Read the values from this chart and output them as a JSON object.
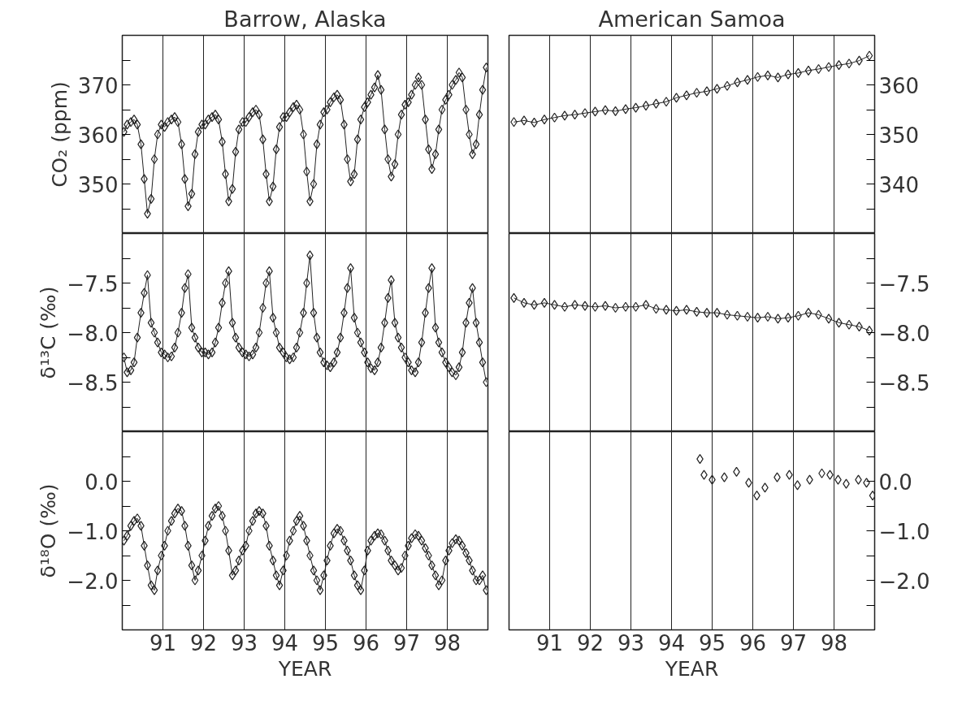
{
  "chart_data": [
    {
      "type": "line",
      "title": "Barrow, Alaska",
      "ylabel": "CO₂ (ppm)",
      "marker": "diamond",
      "grid": "x",
      "tick_labels": "y",
      "xlim": [
        90,
        99
      ],
      "xticks": [
        91,
        92,
        93,
        94,
        95,
        96,
        97,
        98
      ],
      "ylim": [
        340,
        380
      ],
      "yticks": [
        {
          "value": 345,
          "label": null
        },
        350,
        {
          "value": 355,
          "label": null
        },
        360,
        {
          "value": 365,
          "label": null
        },
        370,
        {
          "value": 375,
          "label": null
        }
      ],
      "x": [
        90.04,
        90.12,
        90.21,
        90.29,
        90.37,
        90.46,
        90.54,
        90.62,
        90.71,
        90.79,
        90.87,
        90.96,
        91.04,
        91.12,
        91.21,
        91.29,
        91.37,
        91.46,
        91.54,
        91.62,
        91.71,
        91.79,
        91.87,
        91.96,
        92.04,
        92.12,
        92.21,
        92.29,
        92.37,
        92.46,
        92.54,
        92.62,
        92.71,
        92.79,
        92.87,
        92.96,
        93.04,
        93.12,
        93.21,
        93.29,
        93.37,
        93.46,
        93.54,
        93.62,
        93.71,
        93.79,
        93.87,
        93.96,
        94.04,
        94.12,
        94.21,
        94.29,
        94.37,
        94.46,
        94.54,
        94.62,
        94.71,
        94.79,
        94.87,
        94.96,
        95.04,
        95.12,
        95.21,
        95.29,
        95.37,
        95.46,
        95.54,
        95.62,
        95.71,
        95.79,
        95.87,
        95.96,
        96.04,
        96.12,
        96.21,
        96.29,
        96.37,
        96.46,
        96.54,
        96.62,
        96.71,
        96.79,
        96.87,
        96.96,
        97.04,
        97.12,
        97.21,
        97.29,
        97.37,
        97.46,
        97.54,
        97.62,
        97.71,
        97.79,
        97.87,
        97.96,
        98.04,
        98.12,
        98.21,
        98.29,
        98.37,
        98.46,
        98.54,
        98.62,
        98.71,
        98.79,
        98.87,
        98.96
      ],
      "series": [
        {
          "color": "#222222",
          "values": [
            360.5,
            362,
            362.5,
            363,
            362,
            358,
            351,
            344,
            347,
            355,
            360,
            362,
            361.5,
            362.5,
            363,
            363.5,
            362.5,
            358,
            351,
            345.5,
            348,
            356,
            360.5,
            362,
            362,
            363,
            363.5,
            364,
            363,
            358.5,
            352,
            346.5,
            349,
            356.5,
            361,
            362.5,
            362.5,
            363.5,
            364.5,
            365,
            364,
            359,
            352,
            346.5,
            349.5,
            357,
            361.5,
            363.5,
            363.5,
            364.5,
            365.5,
            366,
            365,
            360,
            352.5,
            346.5,
            350,
            358,
            362,
            364.5,
            365,
            366.5,
            367.5,
            368,
            367,
            362,
            355,
            350.5,
            352,
            359,
            363,
            365.5,
            366.5,
            368,
            369.5,
            372,
            369,
            361,
            355,
            351.5,
            354,
            360,
            364,
            366,
            366.5,
            368,
            370,
            371.5,
            370,
            363,
            357,
            353,
            356,
            361,
            365,
            367,
            368,
            370,
            371,
            372.5,
            371.5,
            365,
            360,
            356,
            358,
            364,
            369,
            373.5
          ]
        }
      ]
    },
    {
      "type": "line",
      "title": "American Samoa",
      "marker": "diamond",
      "grid": "x",
      "tick_labels": "y",
      "xlim": [
        90,
        99
      ],
      "xticks": [
        91,
        92,
        93,
        94,
        95,
        96,
        97,
        98
      ],
      "ylim": [
        330,
        370
      ],
      "yticks": [
        {
          "value": 335,
          "label": null
        },
        340,
        {
          "value": 345,
          "label": null
        },
        350,
        {
          "value": 355,
          "label": null
        },
        360,
        {
          "value": 365,
          "label": null
        }
      ],
      "x": [
        90.12,
        90.37,
        90.62,
        90.87,
        91.12,
        91.37,
        91.62,
        91.87,
        92.12,
        92.37,
        92.62,
        92.87,
        93.12,
        93.37,
        93.62,
        93.87,
        94.12,
        94.37,
        94.62,
        94.87,
        95.12,
        95.37,
        95.62,
        95.87,
        96.12,
        96.37,
        96.62,
        96.87,
        97.12,
        97.37,
        97.62,
        97.87,
        98.12,
        98.37,
        98.62,
        98.87
      ],
      "series": [
        {
          "color": "#222222",
          "values": [
            352.5,
            352.8,
            352.4,
            353.0,
            353.4,
            353.8,
            354.0,
            354.3,
            354.6,
            354.9,
            354.7,
            355.1,
            355.4,
            355.8,
            356.2,
            356.6,
            357.4,
            357.9,
            358.4,
            358.7,
            359.2,
            359.8,
            360.5,
            361.0,
            361.6,
            361.9,
            361.5,
            362.1,
            362.4,
            362.9,
            363.2,
            363.6,
            364.0,
            364.3,
            364.9,
            365.9
          ]
        }
      ]
    },
    {
      "type": "line",
      "ylabel": "δ¹³C (‰)",
      "marker": "diamond",
      "grid": "x",
      "tick_labels": "y",
      "xlim": [
        90,
        99
      ],
      "xticks": [
        91,
        92,
        93,
        94,
        95,
        96,
        97,
        98
      ],
      "ylim": [
        -9,
        -7
      ],
      "yticks": [
        {
          "value": -7.25,
          "label": null
        },
        {
          "value": -7.5,
          "label": "−7.5"
        },
        {
          "value": -7.75,
          "label": null
        },
        {
          "value": -8.0,
          "label": "−8.0"
        },
        {
          "value": -8.25,
          "label": null
        },
        {
          "value": -8.5,
          "label": "−8.5"
        },
        {
          "value": -8.75,
          "label": null
        }
      ],
      "x": [
        90.04,
        90.12,
        90.21,
        90.29,
        90.37,
        90.46,
        90.54,
        90.62,
        90.71,
        90.79,
        90.87,
        90.96,
        91.04,
        91.12,
        91.21,
        91.29,
        91.37,
        91.46,
        91.54,
        91.62,
        91.71,
        91.79,
        91.87,
        91.96,
        92.04,
        92.12,
        92.21,
        92.29,
        92.37,
        92.46,
        92.54,
        92.62,
        92.71,
        92.79,
        92.87,
        92.96,
        93.04,
        93.12,
        93.21,
        93.29,
        93.37,
        93.46,
        93.54,
        93.62,
        93.71,
        93.79,
        93.87,
        93.96,
        94.04,
        94.12,
        94.21,
        94.29,
        94.37,
        94.46,
        94.54,
        94.62,
        94.71,
        94.79,
        94.87,
        94.96,
        95.04,
        95.12,
        95.21,
        95.29,
        95.37,
        95.46,
        95.54,
        95.62,
        95.71,
        95.79,
        95.87,
        95.96,
        96.04,
        96.12,
        96.21,
        96.29,
        96.37,
        96.46,
        96.54,
        96.62,
        96.71,
        96.79,
        96.87,
        96.96,
        97.04,
        97.12,
        97.21,
        97.29,
        97.37,
        97.46,
        97.54,
        97.62,
        97.71,
        97.79,
        97.87,
        97.96,
        98.04,
        98.12,
        98.21,
        98.29,
        98.37,
        98.46,
        98.54,
        98.62,
        98.71,
        98.79,
        98.87,
        98.96
      ],
      "series": [
        {
          "color": "#222222",
          "values": [
            -8.25,
            -8.4,
            -8.38,
            -8.3,
            -8.05,
            -7.8,
            -7.6,
            -7.42,
            -7.9,
            -8.0,
            -8.1,
            -8.2,
            -8.22,
            -8.25,
            -8.24,
            -8.15,
            -8.0,
            -7.8,
            -7.55,
            -7.41,
            -7.95,
            -8.05,
            -8.15,
            -8.2,
            -8.2,
            -8.22,
            -8.2,
            -8.1,
            -7.95,
            -7.7,
            -7.5,
            -7.38,
            -7.9,
            -8.05,
            -8.15,
            -8.2,
            -8.22,
            -8.24,
            -8.22,
            -8.15,
            -8.0,
            -7.75,
            -7.5,
            -7.38,
            -7.85,
            -8.0,
            -8.15,
            -8.2,
            -8.25,
            -8.27,
            -8.25,
            -8.15,
            -8.0,
            -7.8,
            -7.5,
            -7.22,
            -7.8,
            -8.05,
            -8.2,
            -8.3,
            -8.33,
            -8.35,
            -8.3,
            -8.2,
            -8.05,
            -7.8,
            -7.55,
            -7.35,
            -7.85,
            -8.0,
            -8.1,
            -8.2,
            -8.3,
            -8.36,
            -8.38,
            -8.3,
            -8.15,
            -7.9,
            -7.65,
            -7.47,
            -7.9,
            -8.05,
            -8.15,
            -8.25,
            -8.3,
            -8.38,
            -8.4,
            -8.3,
            -8.1,
            -7.8,
            -7.55,
            -7.35,
            -7.95,
            -8.1,
            -8.2,
            -8.3,
            -8.35,
            -8.4,
            -8.43,
            -8.35,
            -8.2,
            -7.9,
            -7.7,
            -7.55,
            -7.9,
            -8.1,
            -8.3,
            -8.5
          ]
        }
      ]
    },
    {
      "type": "line",
      "marker": "diamond",
      "grid": "x",
      "tick_labels": "y",
      "xlim": [
        90,
        99
      ],
      "xticks": [
        91,
        92,
        93,
        94,
        95,
        96,
        97,
        98
      ],
      "ylim": [
        -9,
        -7
      ],
      "yticks": [
        {
          "value": -7.25,
          "label": null
        },
        {
          "value": -7.5,
          "label": "−7.5"
        },
        {
          "value": -7.75,
          "label": null
        },
        {
          "value": -8.0,
          "label": "−8.0"
        },
        {
          "value": -8.25,
          "label": null
        },
        {
          "value": -8.5,
          "label": "−8.5"
        },
        {
          "value": -8.75,
          "label": null
        }
      ],
      "x": [
        90.12,
        90.37,
        90.62,
        90.87,
        91.12,
        91.37,
        91.62,
        91.87,
        92.12,
        92.37,
        92.62,
        92.87,
        93.12,
        93.37,
        93.62,
        93.87,
        94.12,
        94.37,
        94.62,
        94.87,
        95.12,
        95.37,
        95.62,
        95.87,
        96.12,
        96.37,
        96.62,
        96.87,
        97.12,
        97.37,
        97.62,
        97.87,
        98.12,
        98.37,
        98.62,
        98.87
      ],
      "series": [
        {
          "color": "#222222",
          "values": [
            -7.65,
            -7.7,
            -7.72,
            -7.7,
            -7.72,
            -7.74,
            -7.72,
            -7.73,
            -7.74,
            -7.73,
            -7.75,
            -7.74,
            -7.74,
            -7.72,
            -7.76,
            -7.77,
            -7.78,
            -7.77,
            -7.79,
            -7.8,
            -7.8,
            -7.82,
            -7.83,
            -7.84,
            -7.85,
            -7.84,
            -7.86,
            -7.85,
            -7.83,
            -7.8,
            -7.82,
            -7.86,
            -7.9,
            -7.92,
            -7.94,
            -7.98
          ]
        }
      ]
    },
    {
      "type": "line",
      "ylabel": "δ¹⁸O (‰)",
      "xlabel": "YEAR",
      "marker": "diamond",
      "grid": "x",
      "xlim": [
        90,
        99
      ],
      "xticks": [
        91,
        92,
        93,
        94,
        95,
        96,
        97,
        98
      ],
      "ylim": [
        -3,
        1
      ],
      "yticks": [
        {
          "value": 0.5,
          "label": null
        },
        {
          "value": 0,
          "label": "0.0"
        },
        {
          "value": -0.5,
          "label": null
        },
        {
          "value": -1,
          "label": "−1.0"
        },
        {
          "value": -1.5,
          "label": null
        },
        {
          "value": -2,
          "label": "−2.0"
        },
        {
          "value": -2.5,
          "label": null
        }
      ],
      "x": [
        90.04,
        90.12,
        90.21,
        90.29,
        90.37,
        90.46,
        90.54,
        90.62,
        90.71,
        90.79,
        90.87,
        90.96,
        91.04,
        91.12,
        91.21,
        91.29,
        91.37,
        91.46,
        91.54,
        91.62,
        91.71,
        91.79,
        91.87,
        91.96,
        92.04,
        92.12,
        92.21,
        92.29,
        92.37,
        92.46,
        92.54,
        92.62,
        92.71,
        92.79,
        92.87,
        92.96,
        93.04,
        93.12,
        93.21,
        93.29,
        93.37,
        93.46,
        93.54,
        93.62,
        93.71,
        93.79,
        93.87,
        93.96,
        94.04,
        94.12,
        94.21,
        94.29,
        94.37,
        94.46,
        94.54,
        94.62,
        94.71,
        94.79,
        94.87,
        94.96,
        95.04,
        95.12,
        95.21,
        95.29,
        95.37,
        95.46,
        95.54,
        95.62,
        95.71,
        95.79,
        95.87,
        95.96,
        96.04,
        96.12,
        96.21,
        96.29,
        96.37,
        96.46,
        96.54,
        96.62,
        96.71,
        96.79,
        96.87,
        96.96,
        97.04,
        97.12,
        97.21,
        97.29,
        97.37,
        97.46,
        97.54,
        97.62,
        97.71,
        97.79,
        97.87,
        97.96,
        98.04,
        98.12,
        98.21,
        98.29,
        98.37,
        98.46,
        98.54,
        98.62,
        98.71,
        98.79,
        98.87,
        98.96
      ],
      "series": [
        {
          "color": "#222222",
          "values": [
            -1.2,
            -1.1,
            -0.9,
            -0.8,
            -0.75,
            -0.9,
            -1.3,
            -1.7,
            -2.1,
            -2.2,
            -1.8,
            -1.5,
            -1.3,
            -1.0,
            -0.8,
            -0.65,
            -0.55,
            -0.6,
            -0.9,
            -1.3,
            -1.7,
            -2.0,
            -1.8,
            -1.5,
            -1.2,
            -0.9,
            -0.7,
            -0.55,
            -0.5,
            -0.7,
            -1.0,
            -1.4,
            -1.9,
            -1.8,
            -1.6,
            -1.4,
            -1.3,
            -1.0,
            -0.8,
            -0.65,
            -0.6,
            -0.65,
            -0.9,
            -1.3,
            -1.6,
            -1.9,
            -2.1,
            -1.8,
            -1.5,
            -1.2,
            -1.0,
            -0.8,
            -0.7,
            -0.9,
            -1.2,
            -1.5,
            -1.8,
            -2.0,
            -2.2,
            -1.9,
            -1.6,
            -1.3,
            -1.05,
            -0.96,
            -1.0,
            -1.2,
            -1.4,
            -1.6,
            -1.9,
            -2.1,
            -2.2,
            -1.8,
            -1.4,
            -1.2,
            -1.1,
            -1.05,
            -1.07,
            -1.2,
            -1.4,
            -1.6,
            -1.7,
            -1.8,
            -1.75,
            -1.5,
            -1.3,
            -1.15,
            -1.07,
            -1.1,
            -1.2,
            -1.35,
            -1.5,
            -1.7,
            -1.9,
            -2.1,
            -2.0,
            -1.6,
            -1.4,
            -1.25,
            -1.17,
            -1.2,
            -1.3,
            -1.45,
            -1.6,
            -1.8,
            -2.0,
            -2.0,
            -1.9,
            -2.2
          ]
        }
      ]
    },
    {
      "type": "scatter",
      "xlabel": "YEAR",
      "marker": "diamond",
      "grid": "x",
      "xlim": [
        90,
        99
      ],
      "xticks": [
        91,
        92,
        93,
        94,
        95,
        96,
        97,
        98
      ],
      "ylim": [
        -3,
        1
      ],
      "yticks": [
        {
          "value": 0.5,
          "label": null
        },
        {
          "value": 0,
          "label": "0.0"
        },
        {
          "value": -0.5,
          "label": null
        },
        {
          "value": -1,
          "label": "−1.0"
        },
        {
          "value": -1.5,
          "label": null
        },
        {
          "value": -2,
          "label": "−2.0"
        },
        {
          "value": -2.5,
          "label": null
        }
      ],
      "x": [
        94.7,
        94.8,
        95.0,
        95.3,
        95.6,
        95.9,
        96.1,
        96.3,
        96.6,
        96.9,
        97.1,
        97.4,
        97.7,
        97.9,
        98.1,
        98.3,
        98.6,
        98.8,
        98.95
      ],
      "series": [
        {
          "color": "#222222",
          "values": [
            0.45,
            0.13,
            0.03,
            0.08,
            0.19,
            -0.03,
            -0.29,
            -0.13,
            0.08,
            0.13,
            -0.08,
            0.03,
            0.16,
            0.13,
            0.03,
            -0.05,
            0.03,
            -0.03,
            -0.29
          ]
        }
      ]
    }
  ]
}
